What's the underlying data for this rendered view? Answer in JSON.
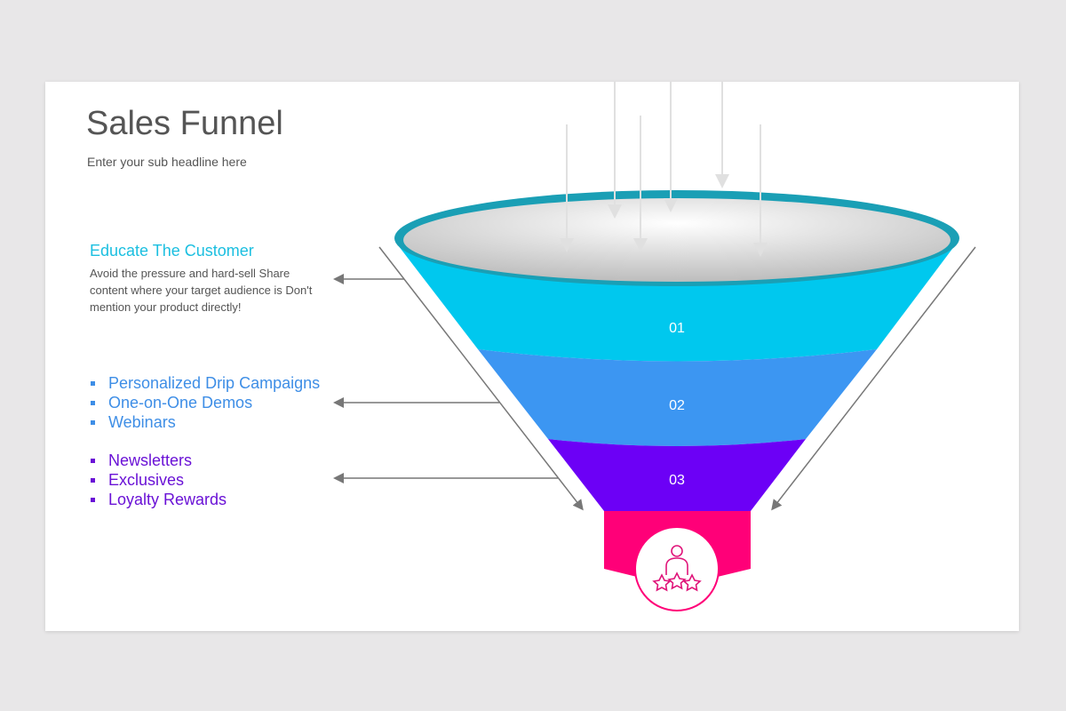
{
  "title": "Sales Funnel",
  "subtitle": "Enter your sub headline here",
  "educate": {
    "heading": "Educate The Customer",
    "body": "Avoid the pressure and hard-sell Share content where your target audience is Don't mention your product directly!"
  },
  "list_blue": [
    "Personalized Drip Campaigns",
    "One-on-One Demos",
    "Webinars"
  ],
  "list_purple": [
    "Newsletters",
    "Exclusives",
    "Loyalty Rewards"
  ],
  "stages": [
    {
      "label": "01",
      "color": "#00c8ee"
    },
    {
      "label": "02",
      "color": "#3c96f2"
    },
    {
      "label": "03",
      "color": "#6c00f6"
    }
  ],
  "bottom": {
    "color": "#ff0078",
    "icon": "customer-rating-icon"
  }
}
